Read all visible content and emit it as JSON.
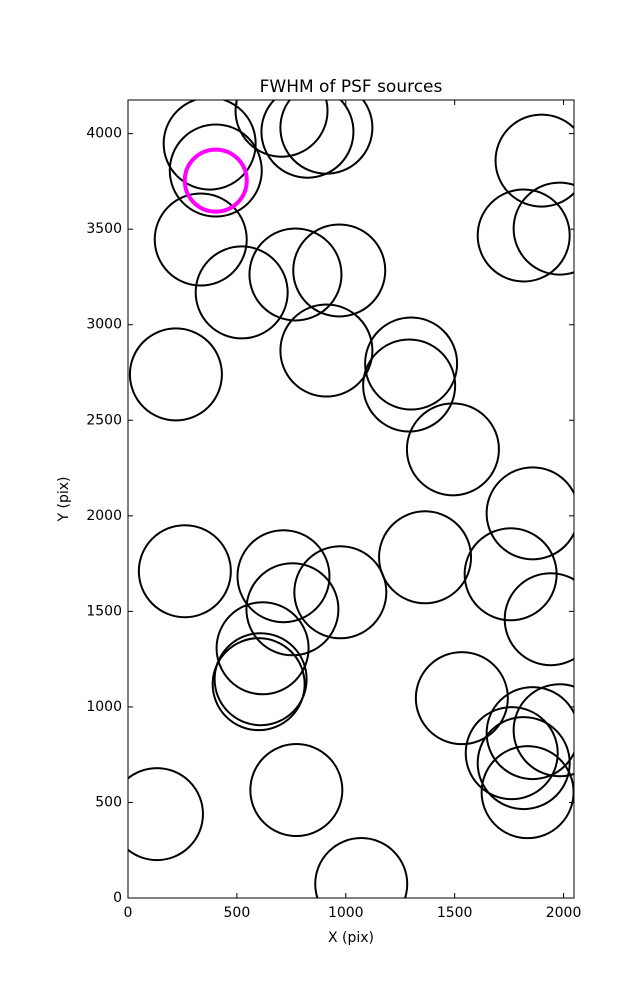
{
  "chart_data": {
    "type": "scatter",
    "title": "FWHM of PSF sources",
    "x_label": "X (pix)",
    "y_label": "Y (pix)",
    "xlim": [
      0,
      2048
    ],
    "ylim": [
      0,
      4176
    ],
    "xticks": [
      0,
      500,
      1000,
      1500,
      2000
    ],
    "yticks": [
      0,
      500,
      1000,
      1500,
      2000,
      2500,
      3000,
      3500,
      4000
    ],
    "series": [
      {
        "color": "#000000",
        "x": [
          375,
          403,
          705,
          824,
          911,
          1899,
          1817,
          1982,
          334,
          522,
          769,
          970,
          911,
          220,
          1300,
          1291,
          1492,
          1858,
          261,
          714,
          755,
          975,
          1364,
          1757,
          1941,
          618,
          609,
          600,
          1533,
          1858,
          1762,
          1817,
          1982,
          1835,
          133,
          773,
          1071
        ],
        "values": [
          3948,
          3807,
          4120,
          4010,
          4031,
          3859,
          3467,
          3503,
          3446,
          3169,
          3263,
          3284,
          2865,
          2740,
          2797,
          2682,
          2348,
          2013,
          1710,
          1684,
          1511,
          1600,
          1783,
          1694,
          1459,
          1307,
          1145,
          1119,
          1046,
          863,
          758,
          706,
          878,
          554,
          439,
          565,
          73
        ]
      },
      {
        "color": "#ff00ff",
        "x": [
          403
        ],
        "values": [
          3754
        ]
      }
    ]
  }
}
